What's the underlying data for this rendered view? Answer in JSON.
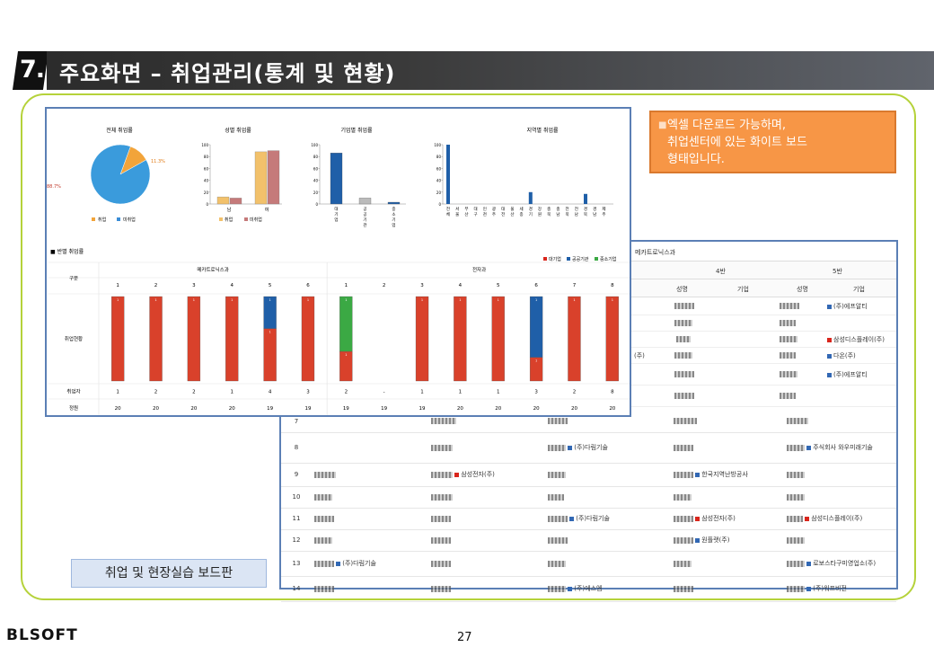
{
  "header": {
    "number": "7.",
    "title": "주요화면 – 취업관리(통계 및 현황)"
  },
  "note": {
    "text_lines": [
      "엑셀 다운로드 가능하며,",
      "취업센터에 있는 화이트 보드",
      "형태입니다."
    ]
  },
  "caption": "취업 및 현장실습 보드판",
  "footer": {
    "logo": "BLSOFT",
    "page": "27"
  },
  "charts": {
    "pie": {
      "title": "전체 취업률",
      "label_small": "11.3%",
      "label_large": "88.7%",
      "legend": [
        "취업",
        "미취업"
      ]
    },
    "gender": {
      "title": "성별 취업률",
      "yticks": [
        "100",
        "80",
        "60",
        "40",
        "20",
        "0"
      ],
      "categories": [
        "남",
        "여"
      ],
      "legend": [
        "취업",
        "미취업"
      ]
    },
    "company": {
      "title": "기업별 취업률",
      "yticks": [
        "100",
        "80",
        "60",
        "40",
        "20",
        "0"
      ],
      "categories": [
        "대\n기\n업",
        "공\n공\n기\n관",
        "중\n소\n기\n업"
      ]
    },
    "region": {
      "title": "지역별 취업률",
      "yticks": [
        "100",
        "80",
        "60",
        "40",
        "20",
        "0"
      ],
      "categories": [
        "전",
        "서",
        "부",
        "대",
        "인",
        "광",
        "대",
        "울",
        "세",
        "경",
        "강",
        "충",
        "충",
        "전",
        "전",
        "경",
        "경",
        "제"
      ],
      "categories2": [
        "체",
        "울",
        "산",
        "구",
        "천",
        "주",
        "전",
        "산",
        "종",
        "기",
        "원",
        "북",
        "남",
        "북",
        "남",
        "북",
        "남",
        "주"
      ]
    }
  },
  "chart_data": [
    {
      "type": "pie",
      "title": "전체 취업률",
      "categories": [
        "취업",
        "미취업"
      ],
      "values": [
        11.3,
        88.7
      ]
    },
    {
      "type": "bar",
      "title": "성별 취업률",
      "categories": [
        "남",
        "여"
      ],
      "series": [
        {
          "name": "취업",
          "values": [
            12,
            88
          ]
        },
        {
          "name": "미취업",
          "values": [
            10,
            90
          ]
        }
      ],
      "ylim": [
        0,
        100
      ]
    },
    {
      "type": "bar",
      "title": "기업별 취업률",
      "categories": [
        "대기업",
        "공공기관",
        "중소기업"
      ],
      "values": [
        86,
        10,
        3
      ],
      "ylim": [
        0,
        100
      ]
    },
    {
      "type": "bar",
      "title": "지역별 취업률",
      "categories": [
        "전체",
        "서울",
        "부산",
        "대구",
        "인천",
        "광주",
        "대전",
        "울산",
        "세종",
        "경기",
        "강원",
        "충북",
        "충남",
        "전북",
        "전남",
        "경북",
        "경남",
        "제주"
      ],
      "values": [
        100,
        0,
        0,
        0,
        0,
        0,
        0,
        0,
        0,
        20,
        0,
        0,
        0,
        0,
        0,
        17,
        0,
        0
      ],
      "ylim": [
        0,
        100
      ]
    }
  ],
  "board": {
    "title": "반별 취업률",
    "legend": [
      "대기업",
      "공공기관",
      "중소기업"
    ],
    "row_labels": {
      "gubun": "구분",
      "status": "취업현황",
      "employed": "취업자",
      "quota": "정원"
    },
    "dept1": {
      "name": "메카트로닉스과",
      "classes": [
        "1",
        "2",
        "3",
        "4",
        "5",
        "6"
      ],
      "employed": [
        "1",
        "2",
        "2",
        "1",
        "4",
        "3"
      ],
      "quota": [
        "20",
        "20",
        "20",
        "20",
        "19",
        "19"
      ]
    },
    "dept2": {
      "name": "전자과",
      "classes": [
        "1",
        "2",
        "3",
        "4",
        "5",
        "6",
        "7",
        "8"
      ],
      "employed": [
        "2",
        "-",
        "1",
        "1",
        "1",
        "3",
        "2",
        "8"
      ],
      "quota": [
        "19",
        "19",
        "19",
        "20",
        "20",
        "20",
        "20",
        "20"
      ]
    }
  },
  "back_table": {
    "dept": "메카트로닉스과",
    "groups": [
      "4반",
      "5반"
    ],
    "cols": [
      "성명",
      "기업",
      "성명",
      "기업"
    ],
    "rows": [
      {
        "no": "7",
        "c4": "",
        "c5": ""
      },
      {
        "no": "8",
        "c3": "(주)다림기술",
        "c5": "주식회사 와우미래기술"
      },
      {
        "no": "9",
        "c2": "삼성전자(주)",
        "c4": "한국지역난방공사",
        "c5": ""
      },
      {
        "no": "10",
        "c5": ""
      },
      {
        "no": "11",
        "c3": "(주)다림기술",
        "c4": "삼성전자(주)",
        "c5": "삼성디스플레이(주)"
      },
      {
        "no": "12",
        "c4": "원플랫(주)",
        "c5": ""
      },
      {
        "no": "13",
        "c1": "(주)다림기술",
        "c5": "로보스타구미영업소(주)"
      },
      {
        "no": "14",
        "c3": "(주)에스엠",
        "c5": "(주)워프비전"
      }
    ],
    "upper_right": [
      "(주)에프알티",
      "삼성디스플레이(주)",
      "다온(주)",
      "(주)에프알티"
    ],
    "upper_left_company": "(주)"
  }
}
